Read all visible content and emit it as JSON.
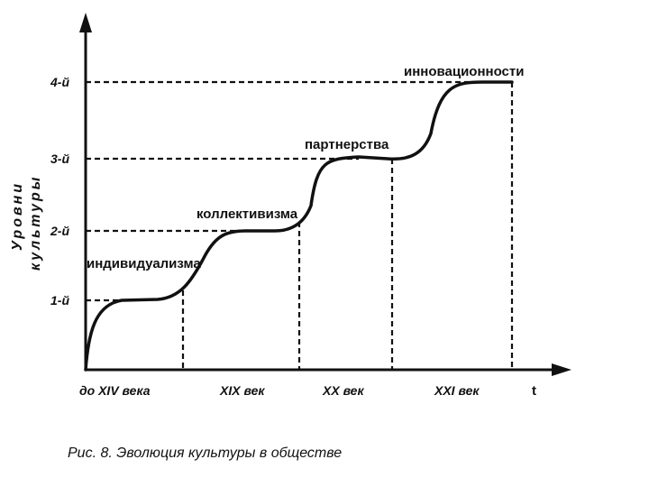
{
  "diagram": {
    "y_axis_label_line1": "Уровни",
    "y_axis_label_line2": "культуры",
    "x_axis_label": "t",
    "y_levels": [
      "1-й",
      "2-й",
      "3-й",
      "4-й"
    ],
    "x_periods": [
      "до XIV века",
      "XIX век",
      "XX век",
      "XXI век"
    ],
    "stages": [
      "индивидуализма",
      "коллективизма",
      "партнерства",
      "инновационности"
    ]
  },
  "caption": "Рис. 8. Эволюция культуры в обществе"
}
